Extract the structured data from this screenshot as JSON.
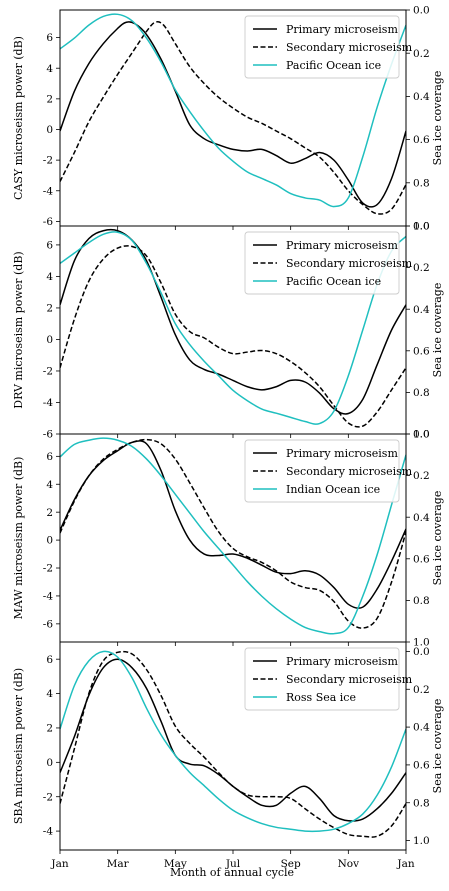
{
  "chart_data": {
    "type": "line",
    "shared_xlabel": "Month of annual cycle",
    "x_ticks": [
      "Jan",
      "Mar",
      "May",
      "Jul",
      "Sep",
      "Nov",
      "Jan"
    ],
    "x_domain": [
      0,
      12
    ],
    "right_ylabel": "Sea ice coverage",
    "right_ticks": [
      "0.0",
      "0.2",
      "0.4",
      "0.6",
      "0.8",
      "1.0"
    ],
    "colors": {
      "primary": "#000000",
      "secondary": "#000000",
      "ice": "#1fbfbf"
    },
    "panels": [
      {
        "ylabel": "CASY microseism power (dB)",
        "ylim": [
          -6.3,
          7.8
        ],
        "yticks": [
          "-6",
          "-4",
          "-2",
          "0",
          "2",
          "4",
          "6"
        ],
        "yticks_values": [
          -6,
          -4,
          -2,
          0,
          2,
          4,
          6
        ],
        "ice_ylim": [
          0.0,
          1.0
        ],
        "series": [
          {
            "name": "Primary microseism",
            "style": "solid",
            "x": [
              0,
              0.5,
              1,
              1.5,
              2,
              2.3,
              2.6,
              3,
              3.5,
              4,
              4.5,
              5,
              5.5,
              6,
              6.5,
              7,
              7.5,
              8,
              8.5,
              9,
              9.5,
              10,
              10.5,
              11,
              11.5,
              12
            ],
            "y": [
              -0.1,
              2.5,
              4.3,
              5.6,
              6.6,
              7.0,
              6.9,
              6.2,
              4.6,
              2.5,
              0.3,
              -0.6,
              -1.0,
              -1.3,
              -1.4,
              -1.3,
              -1.7,
              -2.2,
              -1.9,
              -1.5,
              -2.0,
              -3.3,
              -4.8,
              -4.9,
              -3.2,
              -0.1
            ]
          },
          {
            "name": "Secondary microseism",
            "style": "dashed",
            "x": [
              0,
              0.5,
              1,
              1.5,
              2,
              2.5,
              3,
              3.3,
              3.6,
              4,
              4.5,
              5,
              5.5,
              6,
              6.5,
              7,
              7.5,
              8,
              8.5,
              9,
              9.5,
              10,
              10.5,
              11,
              11.5,
              12
            ],
            "y": [
              -3.4,
              -1.5,
              0.5,
              2.1,
              3.6,
              5.0,
              6.4,
              7.0,
              6.8,
              5.6,
              4.1,
              3.0,
              2.1,
              1.4,
              0.8,
              0.4,
              -0.1,
              -0.6,
              -1.2,
              -1.8,
              -2.8,
              -4.0,
              -4.9,
              -5.5,
              -5.2,
              -3.6
            ]
          },
          {
            "name": "Pacific Ocean ice",
            "style": "solid",
            "x": [
              0,
              0.5,
              1,
              1.5,
              2,
              2.5,
              3,
              3.5,
              4,
              4.5,
              5,
              5.5,
              6,
              6.5,
              7,
              7.5,
              8,
              8.5,
              9,
              9.5,
              10,
              10.5,
              11,
              11.5,
              12
            ],
            "y": [
              0.18,
              0.13,
              0.07,
              0.03,
              0.02,
              0.05,
              0.13,
              0.24,
              0.37,
              0.47,
              0.56,
              0.64,
              0.7,
              0.75,
              0.78,
              0.81,
              0.85,
              0.87,
              0.88,
              0.91,
              0.87,
              0.68,
              0.45,
              0.25,
              0.07
            ]
          }
        ]
      },
      {
        "ylabel": "DRV microseism power (dB)",
        "ylim": [
          -6,
          7.2
        ],
        "yticks": [
          "-6",
          "-4",
          "-2",
          "0",
          "2",
          "4",
          "6"
        ],
        "yticks_values": [
          -6,
          -4,
          -2,
          0,
          2,
          4,
          6
        ],
        "ice_ylim": [
          0.0,
          1.0
        ],
        "series": [
          {
            "name": "Primary microseism",
            "style": "solid",
            "x": [
              0,
              0.5,
              1,
              1.5,
              2,
              2.5,
              3,
              3.5,
              4,
              4.5,
              5,
              5.5,
              6,
              6.5,
              7,
              7.5,
              8,
              8.5,
              9,
              9.5,
              10,
              10.5,
              11,
              11.5,
              12
            ],
            "y": [
              2.2,
              5.0,
              6.4,
              6.9,
              6.9,
              6.3,
              5.0,
              2.7,
              0.3,
              -1.3,
              -1.9,
              -2.2,
              -2.6,
              -3.0,
              -3.2,
              -3.0,
              -2.6,
              -2.7,
              -3.4,
              -4.4,
              -4.7,
              -3.8,
              -1.6,
              0.6,
              2.2
            ]
          },
          {
            "name": "Secondary microseism",
            "style": "dashed",
            "x": [
              0,
              0.5,
              1,
              1.5,
              2,
              2.5,
              3,
              3.5,
              4,
              4.5,
              5,
              5.5,
              6,
              6.5,
              7,
              7.5,
              8,
              8.5,
              9,
              9.5,
              10,
              10.5,
              11,
              11.5,
              12
            ],
            "y": [
              -1.8,
              1.3,
              3.7,
              5.1,
              5.8,
              5.9,
              5.3,
              3.6,
              1.6,
              0.5,
              0.1,
              -0.5,
              -0.9,
              -0.8,
              -0.7,
              -0.9,
              -1.4,
              -2.1,
              -3.0,
              -4.2,
              -5.3,
              -5.5,
              -4.6,
              -3.2,
              -1.8
            ]
          },
          {
            "name": "Pacific Ocean ice",
            "style": "solid",
            "x": [
              0,
              0.5,
              1,
              1.5,
              2,
              2.5,
              3,
              3.5,
              4,
              4.5,
              5,
              5.5,
              6,
              6.5,
              7,
              7.5,
              8,
              8.5,
              9,
              9.5,
              10,
              10.5,
              11,
              11.5,
              12
            ],
            "y": [
              0.18,
              0.13,
              0.08,
              0.04,
              0.03,
              0.07,
              0.18,
              0.32,
              0.47,
              0.57,
              0.65,
              0.72,
              0.79,
              0.84,
              0.88,
              0.9,
              0.92,
              0.94,
              0.95,
              0.89,
              0.72,
              0.5,
              0.28,
              0.12,
              0.05
            ]
          }
        ]
      },
      {
        "ylabel": "MAW microseism power (dB)",
        "ylim": [
          -7.3,
          7.6
        ],
        "yticks": [
          "-6",
          "-4",
          "-2",
          "0",
          "2",
          "4",
          "6"
        ],
        "yticks_values": [
          -6,
          -4,
          -2,
          0,
          2,
          4,
          6
        ],
        "ice_ylim": [
          0.0,
          1.0
        ],
        "series": [
          {
            "name": "Primary microseism",
            "style": "solid",
            "x": [
              0,
              0.5,
              1,
              1.5,
              2,
              2.5,
              3,
              3.5,
              4,
              4.5,
              5,
              5.5,
              6,
              6.5,
              7,
              7.5,
              8,
              8.5,
              9,
              9.5,
              10,
              10.5,
              11,
              11.5,
              12
            ],
            "y": [
              0.7,
              2.9,
              4.6,
              5.7,
              6.4,
              7.0,
              6.9,
              5.0,
              2.1,
              0.0,
              -1.0,
              -1.1,
              -1.0,
              -1.3,
              -1.8,
              -2.3,
              -2.4,
              -2.2,
              -2.5,
              -3.4,
              -4.6,
              -4.8,
              -3.5,
              -1.5,
              0.8
            ]
          },
          {
            "name": "Secondary microseism",
            "style": "dashed",
            "x": [
              0,
              0.5,
              1,
              1.5,
              2,
              2.5,
              3,
              3.5,
              4,
              4.5,
              5,
              5.5,
              6,
              6.5,
              7,
              7.5,
              8,
              8.5,
              9,
              9.5,
              10,
              10.5,
              11,
              11.5,
              12
            ],
            "y": [
              0.5,
              2.8,
              4.6,
              5.8,
              6.5,
              7.0,
              7.2,
              6.9,
              5.8,
              4.1,
              2.3,
              0.6,
              -0.6,
              -1.2,
              -1.6,
              -2.2,
              -3.0,
              -3.4,
              -3.6,
              -4.4,
              -5.8,
              -6.3,
              -5.6,
              -3.0,
              0.6
            ]
          },
          {
            "name": "Indian Ocean ice",
            "style": "solid",
            "x": [
              0,
              0.5,
              1,
              1.5,
              2,
              2.5,
              3,
              3.5,
              4,
              4.5,
              5,
              5.5,
              6,
              6.5,
              7,
              7.5,
              8,
              8.5,
              9,
              9.5,
              10,
              10.5,
              11,
              11.5,
              12
            ],
            "y": [
              0.11,
              0.05,
              0.03,
              0.02,
              0.03,
              0.06,
              0.12,
              0.2,
              0.29,
              0.38,
              0.47,
              0.55,
              0.63,
              0.71,
              0.78,
              0.84,
              0.89,
              0.93,
              0.95,
              0.96,
              0.93,
              0.78,
              0.58,
              0.34,
              0.1
            ]
          }
        ]
      },
      {
        "ylabel": "SBA microseism power (dB)",
        "ylim": [
          -5.1,
          7.0
        ],
        "yticks": [
          "-4",
          "-2",
          "0",
          "2",
          "4",
          "6"
        ],
        "yticks_values": [
          -4,
          -2,
          0,
          2,
          4,
          6
        ],
        "ice_ylim": [
          -0.05,
          1.05
        ],
        "series": [
          {
            "name": "Primary microseism",
            "style": "solid",
            "x": [
              0,
              0.5,
              1,
              1.5,
              2,
              2.5,
              3,
              3.5,
              4,
              4.5,
              5,
              5.5,
              6,
              6.5,
              7,
              7.5,
              8,
              8.5,
              9,
              9.5,
              10,
              10.5,
              11,
              11.5,
              12
            ],
            "y": [
              -0.6,
              1.5,
              3.9,
              5.5,
              6.0,
              5.5,
              4.3,
              2.4,
              0.4,
              -0.1,
              -0.2,
              -0.7,
              -1.4,
              -2.0,
              -2.5,
              -2.5,
              -1.8,
              -1.4,
              -2.1,
              -3.1,
              -3.4,
              -3.3,
              -2.7,
              -1.8,
              -0.6
            ]
          },
          {
            "name": "Secondary microseism",
            "style": "dashed",
            "x": [
              0,
              0.5,
              1,
              1.5,
              2,
              2.5,
              3,
              3.5,
              4,
              4.5,
              5,
              5.5,
              6,
              6.5,
              7,
              7.5,
              8,
              8.5,
              9,
              9.5,
              10,
              10.5,
              11,
              11.5,
              12
            ],
            "y": [
              -2.4,
              0.8,
              4.0,
              5.9,
              6.4,
              6.3,
              5.4,
              3.9,
              2.1,
              1.1,
              0.3,
              -0.6,
              -1.4,
              -1.9,
              -2.0,
              -2.0,
              -2.1,
              -2.7,
              -3.3,
              -3.8,
              -4.2,
              -4.3,
              -4.3,
              -3.7,
              -2.4
            ]
          },
          {
            "name": "Ross Sea ice",
            "style": "solid",
            "x": [
              0,
              0.5,
              1,
              1.5,
              2,
              2.5,
              3,
              3.5,
              4,
              4.5,
              5,
              5.5,
              6,
              6.5,
              7,
              7.5,
              8,
              8.5,
              9,
              9.5,
              10,
              10.5,
              11,
              11.5,
              12
            ],
            "y": [
              0.41,
              0.18,
              0.05,
              0.0,
              0.03,
              0.14,
              0.3,
              0.44,
              0.55,
              0.64,
              0.71,
              0.78,
              0.84,
              0.88,
              0.91,
              0.93,
              0.94,
              0.95,
              0.95,
              0.94,
              0.91,
              0.86,
              0.76,
              0.61,
              0.41
            ]
          }
        ]
      }
    ]
  }
}
